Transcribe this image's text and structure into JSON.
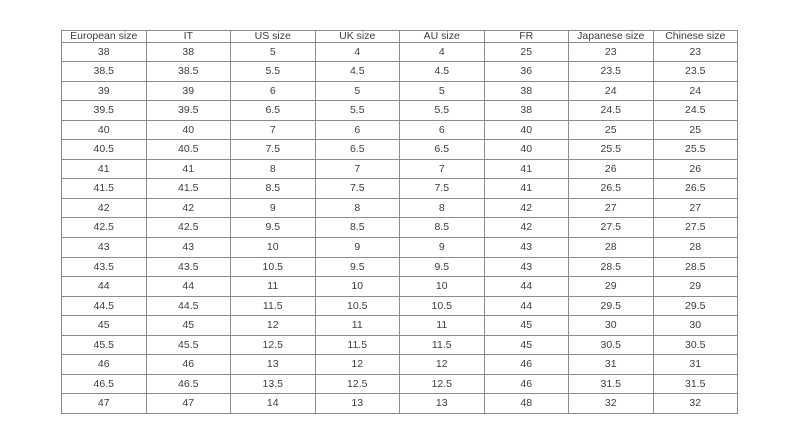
{
  "table": {
    "headers": [
      "European size",
      "IT",
      "US size",
      "UK size",
      "AU size",
      "FR",
      "Japanese size",
      "Chinese size"
    ],
    "rows": [
      [
        "38",
        "38",
        "5",
        "4",
        "4",
        "25",
        "23",
        "23"
      ],
      [
        "38.5",
        "38.5",
        "5.5",
        "4.5",
        "4.5",
        "36",
        "23.5",
        "23.5"
      ],
      [
        "39",
        "39",
        "6",
        "5",
        "5",
        "38",
        "24",
        "24"
      ],
      [
        "39.5",
        "39.5",
        "6.5",
        "5.5",
        "5.5",
        "38",
        "24.5",
        "24.5"
      ],
      [
        "40",
        "40",
        "7",
        "6",
        "6",
        "40",
        "25",
        "25"
      ],
      [
        "40.5",
        "40.5",
        "7.5",
        "6.5",
        "6.5",
        "40",
        "25.5",
        "25.5"
      ],
      [
        "41",
        "41",
        "8",
        "7",
        "7",
        "41",
        "26",
        "26"
      ],
      [
        "41.5",
        "41.5",
        "8.5",
        "7.5",
        "7.5",
        "41",
        "26.5",
        "26.5"
      ],
      [
        "42",
        "42",
        "9",
        "8",
        "8",
        "42",
        "27",
        "27"
      ],
      [
        "42.5",
        "42.5",
        "9.5",
        "8.5",
        "8.5",
        "42",
        "27.5",
        "27.5"
      ],
      [
        "43",
        "43",
        "10",
        "9",
        "9",
        "43",
        "28",
        "28"
      ],
      [
        "43.5",
        "43.5",
        "10.5",
        "9.5",
        "9.5",
        "43",
        "28.5",
        "28.5"
      ],
      [
        "44",
        "44",
        "11",
        "10",
        "10",
        "44",
        "29",
        "29"
      ],
      [
        "44.5",
        "44.5",
        "11.5",
        "10.5",
        "10.5",
        "44",
        "29.5",
        "29.5"
      ],
      [
        "45",
        "45",
        "12",
        "11",
        "11",
        "45",
        "30",
        "30"
      ],
      [
        "45.5",
        "45.5",
        "12.5",
        "11.5",
        "11.5",
        "45",
        "30.5",
        "30.5"
      ],
      [
        "46",
        "46",
        "13",
        "12",
        "12",
        "46",
        "31",
        "31"
      ],
      [
        "46.5",
        "46.5",
        "13.5",
        "12.5",
        "12.5",
        "46",
        "31.5",
        "31.5"
      ],
      [
        "47",
        "47",
        "14",
        "13",
        "13",
        "48",
        "32",
        "32"
      ]
    ],
    "colors": {
      "border": "#8c8c8c",
      "text": "#3d3d3d",
      "background": "#ffffff"
    }
  }
}
